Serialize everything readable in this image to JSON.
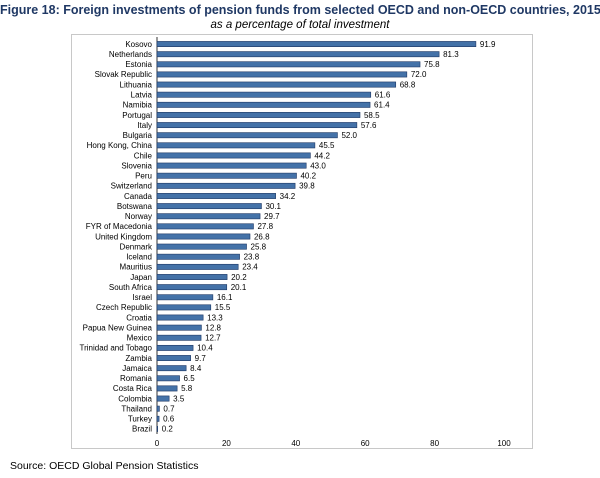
{
  "figure": {
    "title": "Figure 18: Foreign investments of pension funds from selected OECD and non-OECD countries, 2015",
    "subtitle": "as a percentage of total investment",
    "source": "Source: OECD Global Pension Statistics"
  },
  "colors": {
    "bar": "#4472a8",
    "bar_edge": "#1f3864",
    "title": "#1f3864"
  },
  "chart_data": {
    "type": "bar",
    "orientation": "horizontal",
    "title": "Foreign investments of pension funds from selected OECD and non-OECD countries, 2015",
    "subtitle": "as a percentage of total investment",
    "xlim": [
      0,
      100
    ],
    "xticks": [
      0,
      20,
      40,
      60,
      80,
      100
    ],
    "grid": false,
    "categories": [
      "Kosovo",
      "Netherlands",
      "Estonia",
      "Slovak Republic",
      "Lithuania",
      "Latvia",
      "Namibia",
      "Portugal",
      "Italy",
      "Bulgaria",
      "Hong Kong, China",
      "Chile",
      "Slovenia",
      "Peru",
      "Switzerland",
      "Canada",
      "Botswana",
      "Norway",
      "FYR of Macedonia",
      "United Kingdom",
      "Denmark",
      "Iceland",
      "Mauritius",
      "Japan",
      "South Africa",
      "Israel",
      "Czech Republic",
      "Croatia",
      "Papua New Guinea",
      "Mexico",
      "Trinidad and Tobago",
      "Zambia",
      "Jamaica",
      "Romania",
      "Costa Rica",
      "Colombia",
      "Thailand",
      "Turkey",
      "Brazil"
    ],
    "values": [
      91.9,
      81.3,
      75.8,
      72.0,
      68.8,
      61.6,
      61.4,
      58.5,
      57.6,
      52.0,
      45.5,
      44.2,
      43.0,
      40.2,
      39.8,
      34.2,
      30.1,
      29.7,
      27.8,
      26.8,
      25.8,
      23.8,
      23.4,
      20.2,
      20.1,
      16.1,
      15.5,
      13.3,
      12.8,
      12.7,
      10.4,
      9.7,
      8.4,
      6.5,
      5.8,
      3.5,
      0.7,
      0.6,
      0.2
    ],
    "value_labels": [
      "91.9",
      "81.3",
      "75.8",
      "72.0",
      "68.8",
      "61.6",
      "61.4",
      "58.5",
      "57.6",
      "52.0",
      "45.5",
      "44.2",
      "43.0",
      "40.2",
      "39.8",
      "34.2",
      "30.1",
      "29.7",
      "27.8",
      "26.8",
      "25.8",
      "23.8",
      "23.4",
      "20.2",
      "20.1",
      "16.1",
      "15.5",
      "13.3",
      "12.8",
      "12.7",
      "10.4",
      "9.7",
      "8.4",
      "6.5",
      "5.8",
      "3.5",
      "0.7",
      "0.6",
      "0.2"
    ]
  }
}
